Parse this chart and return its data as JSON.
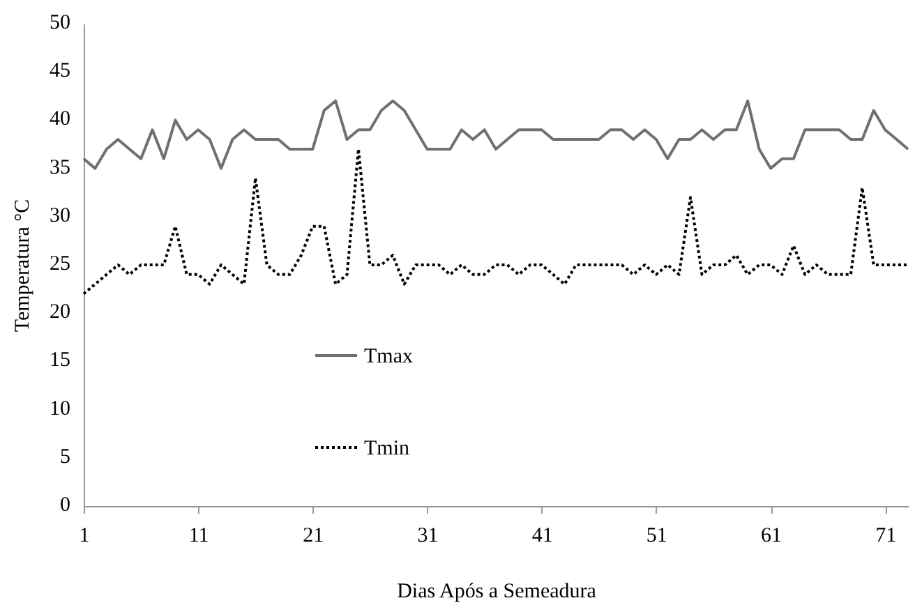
{
  "chart_data": {
    "type": "line",
    "xlabel": "Dias Após a Semeadura",
    "ylabel": "Temperatura °C",
    "x": [
      1,
      2,
      3,
      4,
      5,
      6,
      7,
      8,
      9,
      10,
      11,
      12,
      13,
      14,
      15,
      16,
      17,
      18,
      19,
      20,
      21,
      22,
      23,
      24,
      25,
      26,
      27,
      28,
      29,
      30,
      31,
      32,
      33,
      34,
      35,
      36,
      37,
      38,
      39,
      40,
      41,
      42,
      43,
      44,
      45,
      46,
      47,
      48,
      49,
      50,
      51,
      52,
      53,
      54,
      55,
      56,
      57,
      58,
      59,
      60,
      61,
      62,
      63,
      64,
      65,
      66,
      67,
      68,
      69,
      70,
      71,
      72,
      73
    ],
    "xlim": [
      1,
      73
    ],
    "xticks": [
      1,
      11,
      21,
      31,
      41,
      51,
      61,
      71
    ],
    "ylim": [
      0,
      50
    ],
    "yticks": [
      0,
      5,
      10,
      15,
      20,
      25,
      30,
      35,
      40,
      45,
      50
    ],
    "grid": false,
    "legend": "bottom left",
    "series": [
      {
        "name": "Tmax",
        "color": "#707070",
        "line_style": "solid",
        "values": [
          36,
          35,
          37,
          38,
          37,
          36,
          39,
          36,
          40,
          38,
          39,
          38,
          35,
          38,
          39,
          38,
          38,
          38,
          37,
          37,
          37,
          41,
          42,
          38,
          39,
          39,
          41,
          42,
          41,
          39,
          37,
          37,
          37,
          39,
          38,
          39,
          37,
          38,
          39,
          39,
          39,
          38,
          38,
          38,
          38,
          38,
          39,
          39,
          38,
          39,
          38,
          36,
          38,
          38,
          39,
          38,
          39,
          39,
          42,
          37,
          35,
          36,
          36,
          39,
          39,
          39,
          39,
          38,
          38,
          41,
          39,
          38,
          37
        ]
      },
      {
        "name": "Tmin",
        "color": "#000000",
        "line_style": "dotted",
        "values": [
          22,
          23,
          24,
          25,
          24,
          25,
          25,
          25,
          29,
          24,
          24,
          23,
          25,
          24,
          23,
          34,
          25,
          24,
          24,
          26,
          29,
          29,
          23,
          24,
          37,
          25,
          25,
          26,
          23,
          25,
          25,
          25,
          24,
          25,
          24,
          24,
          25,
          25,
          24,
          25,
          25,
          24,
          23,
          25,
          25,
          25,
          25,
          25,
          24,
          25,
          24,
          25,
          24,
          32,
          24,
          25,
          25,
          26,
          24,
          25,
          25,
          24,
          27,
          24,
          25,
          24,
          24,
          24,
          33,
          25,
          25,
          25,
          25
        ]
      }
    ]
  }
}
